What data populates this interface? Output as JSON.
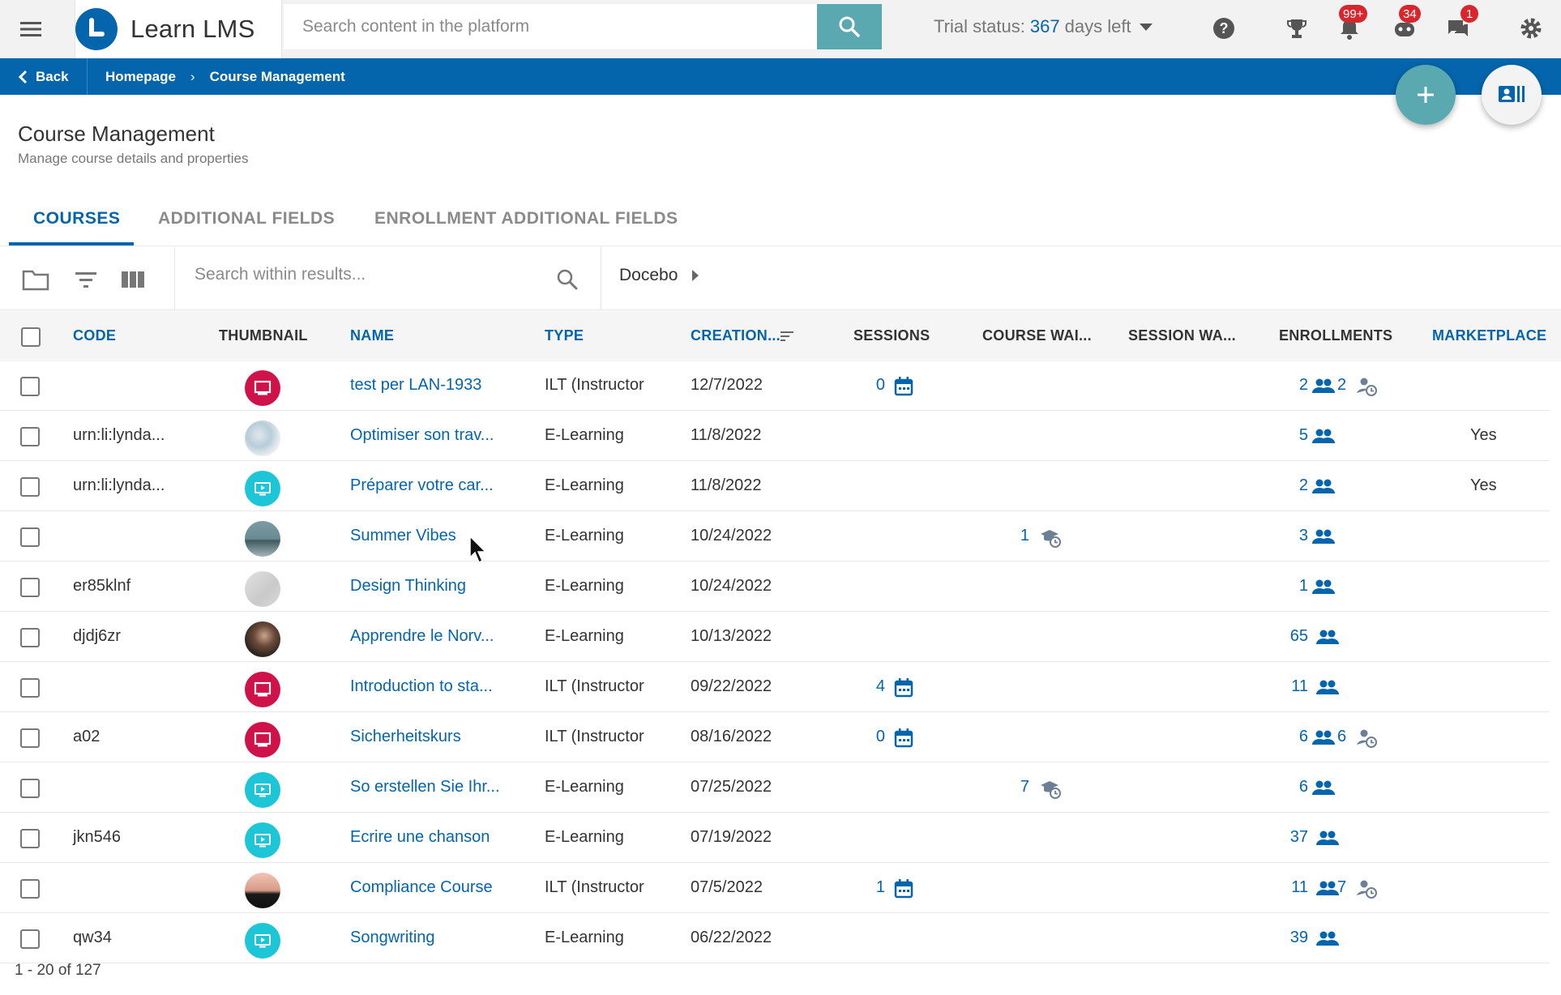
{
  "app": {
    "name": "Learn LMS",
    "search_placeholder": "Search content in the platform",
    "trial_prefix": "Trial status:",
    "trial_days": "367",
    "trial_suffix": "days left",
    "badges": {
      "notifications": "99+",
      "messages_bot": "34",
      "chat": "1"
    },
    "accent_color": "#0465ac",
    "teal_color": "#5aa9b0"
  },
  "breadcrumb": {
    "back": "Back",
    "items": [
      "Homepage",
      "Course Management"
    ]
  },
  "page": {
    "title": "Course Management",
    "subtitle": "Manage course details and properties"
  },
  "tabs": [
    "COURSES",
    "ADDITIONAL FIELDS",
    "ENROLLMENT ADDITIONAL FIELDS"
  ],
  "toolbar": {
    "search_placeholder": "Search within results...",
    "branch": "Docebo"
  },
  "columns": {
    "code": "CODE",
    "thumbnail": "THUMBNAIL",
    "name": "NAME",
    "type": "TYPE",
    "creation": "CREATION...",
    "sessions": "SESSIONS",
    "course_waiting": "COURSE WAI...",
    "session_waiting": "SESSION WA...",
    "enrollments": "ENROLLMENTS",
    "marketplace": "MARKETPLACE"
  },
  "rows": [
    {
      "code": "",
      "thumb": "ilt",
      "name": "test per LAN-1933",
      "type": "ILT (Instructor",
      "date": "12/7/2022",
      "sessions": "0",
      "course_wait": "",
      "enroll": "2",
      "enroll_wait": "2",
      "market": ""
    },
    {
      "code": "urn:li:lynda...",
      "thumb": "photo-desk",
      "name": "Optimiser son trav...",
      "type": "E-Learning",
      "date": "11/8/2022",
      "sessions": "",
      "course_wait": "",
      "enroll": "5",
      "enroll_wait": "",
      "market": "Yes"
    },
    {
      "code": "urn:li:lynda...",
      "thumb": "elearning",
      "name": "Préparer votre car...",
      "type": "E-Learning",
      "date": "11/8/2022",
      "sessions": "",
      "course_wait": "",
      "enroll": "2",
      "enroll_wait": "",
      "market": "Yes"
    },
    {
      "code": "",
      "thumb": "photo-sea",
      "name": "Summer Vibes",
      "type": "E-Learning",
      "date": "10/24/2022",
      "sessions": "",
      "course_wait": "1",
      "enroll": "3",
      "enroll_wait": "",
      "market": ""
    },
    {
      "code": "er85klnf",
      "thumb": "photo-grey",
      "name": "Design Thinking",
      "type": "E-Learning",
      "date": "10/24/2022",
      "sessions": "",
      "course_wait": "",
      "enroll": "1",
      "enroll_wait": "",
      "market": ""
    },
    {
      "code": "djdj6zr",
      "thumb": "photo-person",
      "name": "Apprendre le Norv...",
      "type": "E-Learning",
      "date": "10/13/2022",
      "sessions": "",
      "course_wait": "",
      "enroll": "65",
      "enroll_wait": "",
      "market": ""
    },
    {
      "code": "",
      "thumb": "ilt",
      "name": "Introduction to sta...",
      "type": "ILT (Instructor",
      "date": "09/22/2022",
      "sessions": "4",
      "course_wait": "",
      "enroll": "11",
      "enroll_wait": "",
      "market": ""
    },
    {
      "code": "a02",
      "thumb": "ilt",
      "name": "Sicherheitskurs",
      "type": "ILT (Instructor",
      "date": "08/16/2022",
      "sessions": "0",
      "course_wait": "",
      "enroll": "6",
      "enroll_wait": "6",
      "market": ""
    },
    {
      "code": "",
      "thumb": "elearning",
      "name": "So erstellen Sie Ihr...",
      "type": "E-Learning",
      "date": "07/25/2022",
      "sessions": "",
      "course_wait": "7",
      "enroll": "6",
      "enroll_wait": "",
      "market": ""
    },
    {
      "code": "jkn546",
      "thumb": "elearning",
      "name": "Ecrire une chanson",
      "type": "E-Learning",
      "date": "07/19/2022",
      "sessions": "",
      "course_wait": "",
      "enroll": "37",
      "enroll_wait": "",
      "market": ""
    },
    {
      "code": "",
      "thumb": "photo-sunset",
      "name": "Compliance Course",
      "type": "ILT (Instructor",
      "date": "07/5/2022",
      "sessions": "1",
      "course_wait": "",
      "enroll": "11",
      "enroll_wait": "7",
      "market": ""
    },
    {
      "code": "qw34",
      "thumb": "elearning",
      "name": "Songwriting",
      "type": "E-Learning",
      "date": "06/22/2022",
      "sessions": "",
      "course_wait": "",
      "enroll": "39",
      "enroll_wait": "",
      "market": ""
    }
  ],
  "pagination": "1 - 20 of 127"
}
